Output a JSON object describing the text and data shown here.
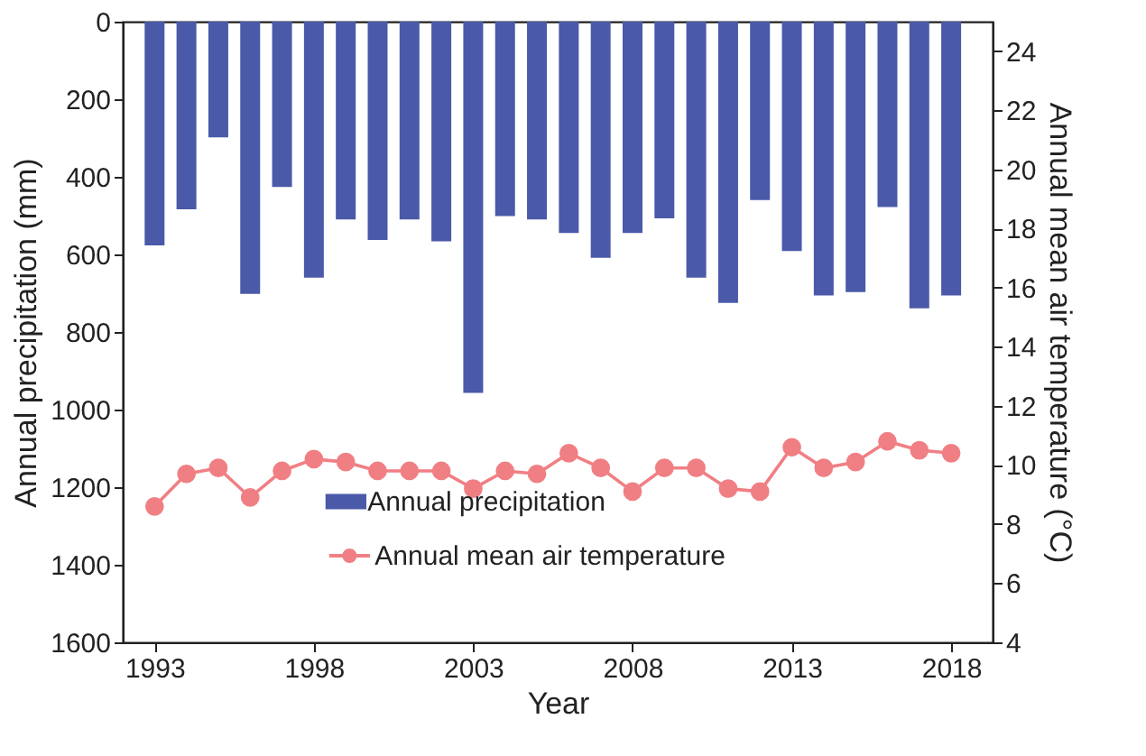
{
  "chart_data": {
    "type": "bar",
    "xlabel": "Year",
    "ylabel": "Annual precipitation (mm)",
    "y2label": "Annual mean air temperature (°C)",
    "x": [
      1993,
      1994,
      1995,
      1996,
      1997,
      1998,
      1999,
      2000,
      2001,
      2002,
      2003,
      2004,
      2005,
      2006,
      2007,
      2008,
      2009,
      2010,
      2011,
      2012,
      2013,
      2014,
      2015,
      2016,
      2017,
      2018
    ],
    "xlim": [
      1992,
      2019.3
    ],
    "xticks": [
      1993,
      1998,
      2003,
      2008,
      2013,
      2018
    ],
    "ylim": [
      1600,
      0
    ],
    "yticks": [
      0,
      200,
      400,
      600,
      800,
      1000,
      1200,
      1400,
      1600
    ],
    "y2lim": [
      4,
      25
    ],
    "y2ticks": [
      4,
      6,
      8,
      10,
      12,
      14,
      16,
      18,
      20,
      22,
      24
    ],
    "series": [
      {
        "name": "Annual precipitation",
        "color": "#4a59a8",
        "values": [
          577,
          484,
          298,
          702,
          426,
          660,
          510,
          563,
          510,
          566,
          957,
          501,
          510,
          545,
          609,
          545,
          507,
          660,
          725,
          460,
          591,
          706,
          697,
          478,
          739,
          706
        ]
      },
      {
        "name": "Annual mean air temperature",
        "type": "line",
        "axis": "y2",
        "color": "#f07f84",
        "marker": "circle",
        "values": [
          8.6,
          9.7,
          9.9,
          8.9,
          9.8,
          10.2,
          10.1,
          9.8,
          9.8,
          9.8,
          9.2,
          9.8,
          9.7,
          10.4,
          9.9,
          9.1,
          9.9,
          9.9,
          9.2,
          9.1,
          10.6,
          9.9,
          10.1,
          10.8,
          10.5,
          10.4
        ]
      }
    ],
    "legend": "bottom",
    "grid": false
  }
}
